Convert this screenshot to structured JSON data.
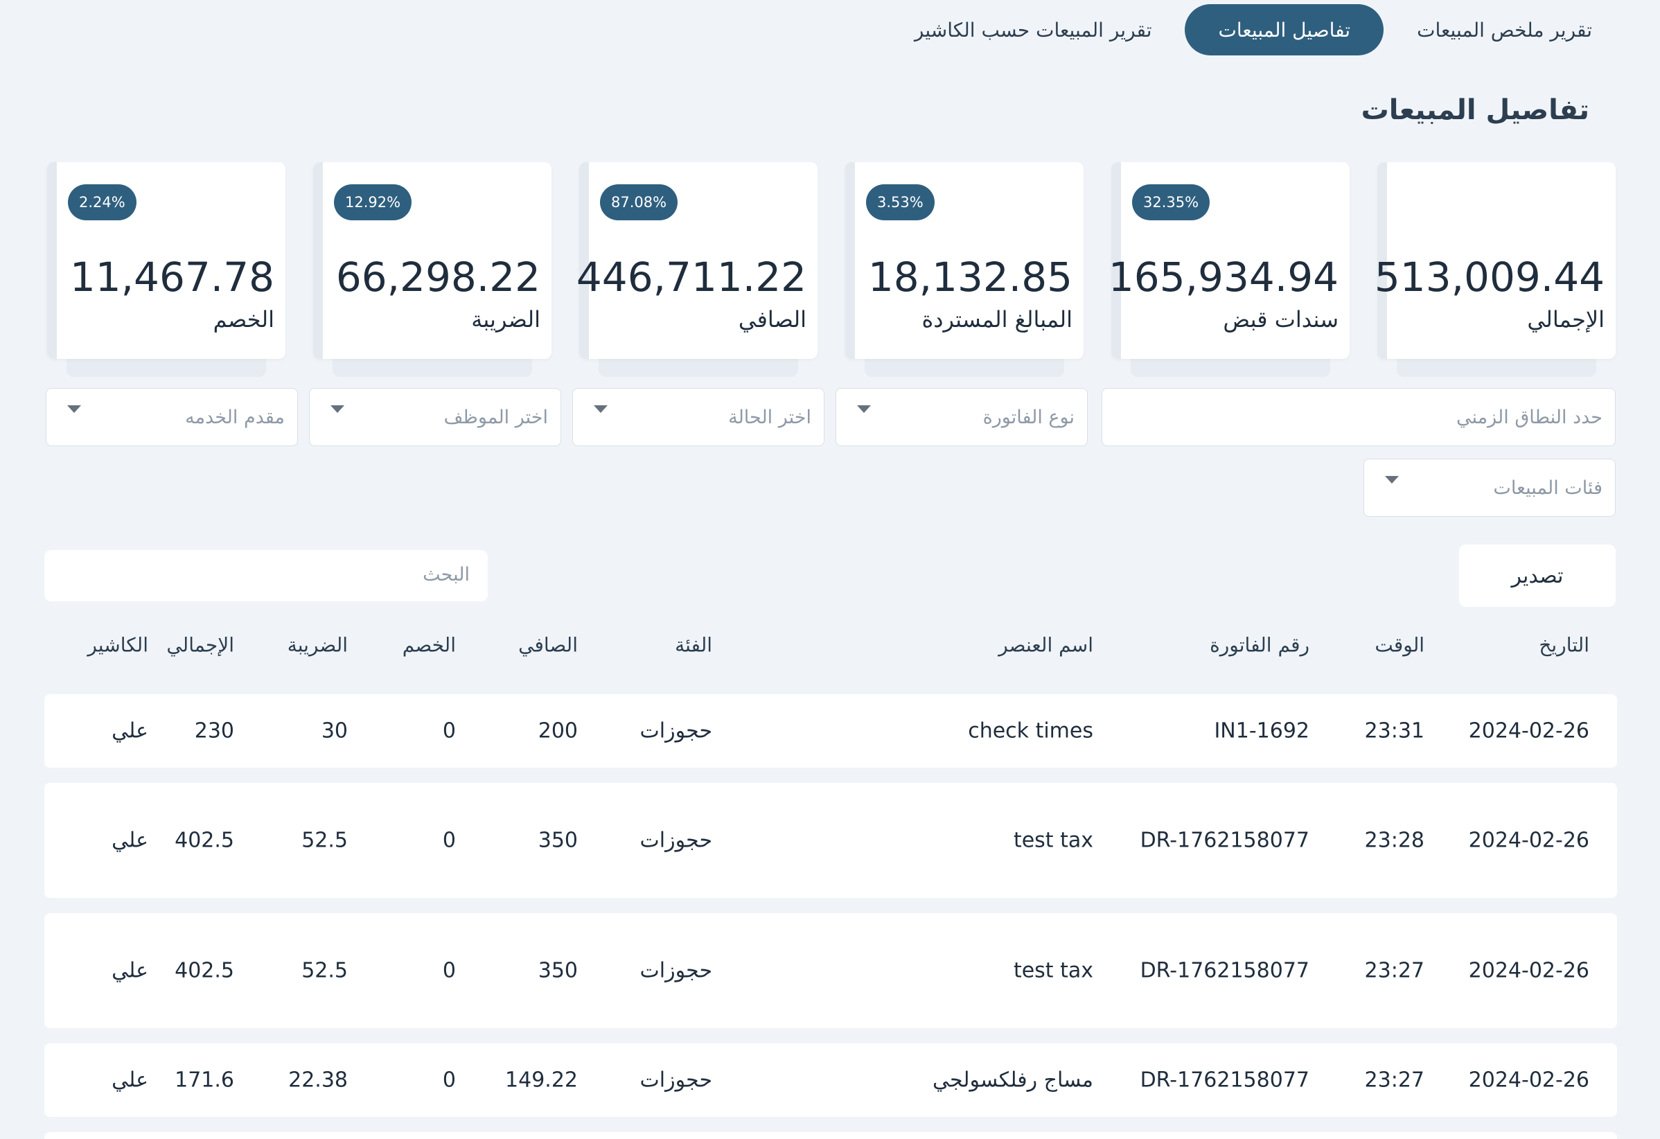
{
  "tabs": [
    {
      "label": "تقرير ملخص المبيعات"
    },
    {
      "label": "تفاصيل المبيعات"
    },
    {
      "label": "تقرير المبيعات حسب الكاشير"
    }
  ],
  "page_title": "تفاصيل المبيعات",
  "cards": [
    {
      "label": "الإجمالي",
      "value": "513,009.44",
      "badge": ""
    },
    {
      "label": "سندات قبض",
      "value": "165,934.94",
      "badge": "32.35%"
    },
    {
      "label": "المبالغ المستردة",
      "value": "18,132.85",
      "badge": "3.53%"
    },
    {
      "label": "الصافي",
      "value": "446,711.22",
      "badge": "87.08%"
    },
    {
      "label": "الضريبة",
      "value": "66,298.22",
      "badge": "12.92%"
    },
    {
      "label": "الخصم",
      "value": "11,467.78",
      "badge": "2.24%"
    }
  ],
  "filters": {
    "date_range": "حدد النطاق الزمني",
    "invoice_type": "نوع الفاتورة",
    "status": "اختر الحالة",
    "employee": "اختر الموظف",
    "provider": "مقدم الخدمه",
    "categories": "فئات المبيعات"
  },
  "search": {
    "placeholder": "البحث"
  },
  "export_label": "تصدير",
  "table": {
    "headers": {
      "date": "التاريخ",
      "time": "الوقت",
      "invoice": "رقم الفاتورة",
      "item": "اسم العنصر",
      "category": "الفئة",
      "net": "الصافي",
      "discount": "الخصم",
      "tax": "الضريبة",
      "total": "الإجمالي",
      "cashier": "الكاشير"
    },
    "rows": [
      {
        "date": "2024-02-26",
        "time": "23:31",
        "invoice": "IN1-1692",
        "item": "check times",
        "category": "حجوزات",
        "net": "200",
        "discount": "0",
        "tax": "30",
        "total": "230",
        "cashier": "علي"
      },
      {
        "date": "2024-02-26",
        "time": "23:28",
        "invoice": "DR-1762158077",
        "item": "test tax",
        "category": "حجوزات",
        "net": "350",
        "discount": "0",
        "tax": "52.5",
        "total": "402.5",
        "cashier": "علي"
      },
      {
        "date": "2024-02-26",
        "time": "23:27",
        "invoice": "DR-1762158077",
        "item": "test tax",
        "category": "حجوزات",
        "net": "350",
        "discount": "0",
        "tax": "52.5",
        "total": "402.5",
        "cashier": "علي"
      },
      {
        "date": "2024-02-26",
        "time": "23:27",
        "invoice": "DR-1762158077",
        "item": "مساج رفلكسولجي",
        "category": "حجوزات",
        "net": "149.22",
        "discount": "0",
        "tax": "22.38",
        "total": "171.6",
        "cashier": "علي"
      }
    ]
  },
  "colors": {
    "accent": "#2f5f7f",
    "background": "#f0f4f8"
  }
}
